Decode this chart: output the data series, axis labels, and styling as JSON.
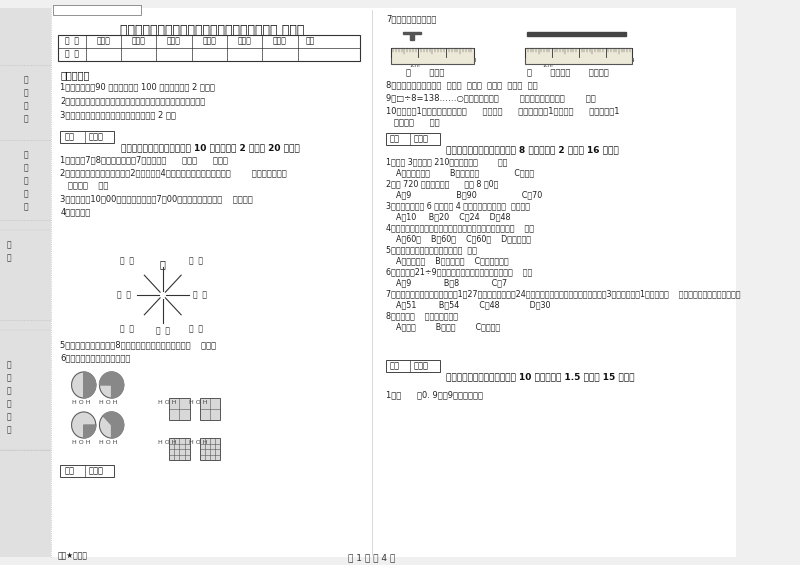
{
  "title": "河北省实验小学三年级数学下学期期中考试试题 附解析",
  "watermark": "绝密★启用前",
  "bg_color": "#f0f0f0",
  "page_footer": "第 1 页 共 4 页",
  "table_headers": [
    "题  号",
    "填空题",
    "选择题",
    "判断题",
    "计算题",
    "综合题",
    "应用题",
    "总分"
  ],
  "instructions": [
    "1、考试时间：90 分钟，满分为 100 分（含卷面分 2 分）。",
    "2、请首先按要求在试卷的指定位置填写您的姓名、班级、学号。",
    "3、不要在试卷上乱写乱画，卷面不整洁口 2 分。"
  ],
  "sec1_items": [
    "1、时针在7和8之间，分针指向7，这时是（      ）时（      ）分。",
    "2、劳动课上做纸花，红红做了2朵红纸花，4朵蓝花，红花占纸花总数的（        ），蓝花占纸花",
    "   总数的（    ）。",
    "3、小林晚上10：00睡觉，第二天早上7：00起床，他一共睡了（    ）小时。",
    "4、填一填。"
  ],
  "sec1_items2": [
    "5、小明从一楼到三楼用8秒，照这样他从一楼到五楼用（    ）秒。",
    "6、看图写分数，并比较大小。"
  ],
  "sec2_items": [
    "1、爸爸 3小时行了 210千米，他是（        ）。",
    "    A、乘公共汽车        B、骑自行车              C、步行",
    "2、从 720 里连续减去（      ）个 8 得0。",
    "    A、9                  B、90                  C、70",
    "3、一个长方形长 6 厘米，宽 4 厘米，它的周长是（  ）厘米。",
    "    A、10     B、20    C、24    D、48",
    "4、时针从上一个数字到相邻的下一个数字，经过的时间是（    ）。",
    "    A、60秒    B、60分    C、60时    D、无法确定",
    "5、下面现象中属于平移现象的是（  ）。",
    "    A、开关抽屉    B、打开瓶盖    C、转动的风车",
    "6、要使「\u000221÷9」的商是三位数，「\u0002」里只能填（    ）。",
    "    A、9             B、8             C、7",
    "7、学校开设两个兴趣小组，三（1）27人参加书画小组，24人参加棋艺小组，两个小组都参加的有3人，那么三（1）一共有（    ）人参加了书画和棋艺小组。",
    "    A、51         B、54        C、48            D、30",
    "8、四边形（    ）平行四边形。",
    "    A、一定        B、可能        C、不可能"
  ],
  "sec3_header": "三、仔细推敗，正确判断（共 10 小题，每题 1.5 分，共 15 分）。",
  "sec3_item1": "1、（      ）0. 9里有9个十分之一。"
}
